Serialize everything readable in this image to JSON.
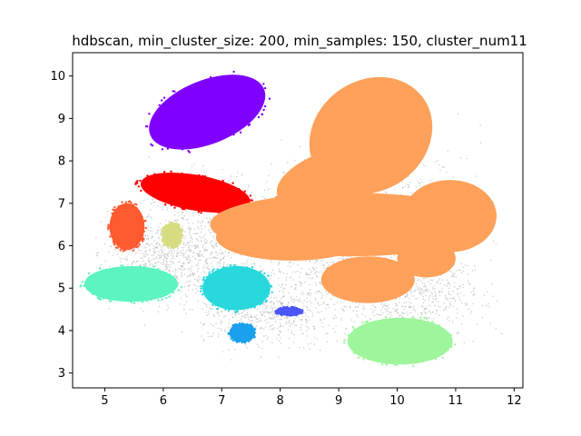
{
  "chart_data": {
    "type": "scatter",
    "title": "hdbscan, min_cluster_size: 200, min_samples: 150, cluster_num11",
    "xlabel": "",
    "ylabel": "",
    "xlim": [
      4.45,
      12.15
    ],
    "ylim": [
      2.65,
      10.55
    ],
    "xticks": [
      5,
      6,
      7,
      8,
      9,
      10,
      11,
      12
    ],
    "yticks": [
      3,
      4,
      5,
      6,
      7,
      8,
      9,
      10
    ],
    "grid": false,
    "legend": "none",
    "noise_color": "#9e9e9e",
    "clusters": [
      {
        "color": "#8000ff",
        "cx": 6.75,
        "cy": 9.15,
        "rx": 1.05,
        "ry": 0.75,
        "angle": -22
      },
      {
        "color": "#ff0000",
        "cx": 6.55,
        "cy": 7.25,
        "rx": 0.95,
        "ry": 0.42,
        "angle": 10
      },
      {
        "color": "#ff5a30",
        "cx": 5.38,
        "cy": 6.45,
        "rx": 0.3,
        "ry": 0.55,
        "angle": 0
      },
      {
        "color": "#d6dc80",
        "cx": 6.15,
        "cy": 6.25,
        "rx": 0.17,
        "ry": 0.28,
        "angle": 0
      },
      {
        "color": "#5cf4c0",
        "cx": 5.45,
        "cy": 5.1,
        "rx": 0.8,
        "ry": 0.42,
        "angle": 0
      },
      {
        "color": "#28d8dc",
        "cx": 7.25,
        "cy": 5.0,
        "rx": 0.58,
        "ry": 0.52,
        "angle": 0
      },
      {
        "color": "#1aa0ec",
        "cx": 7.35,
        "cy": 3.95,
        "rx": 0.22,
        "ry": 0.22,
        "angle": 0
      },
      {
        "color": "#4a56fb",
        "cx": 8.15,
        "cy": 4.45,
        "rx": 0.22,
        "ry": 0.1,
        "angle": 0
      },
      {
        "color": "#9ef59c",
        "cx": 10.05,
        "cy": 3.75,
        "rx": 0.9,
        "ry": 0.55,
        "angle": 0
      },
      {
        "color": "#ffa15a",
        "cx": 9.5,
        "cy": 7.0,
        "rx": 2.0,
        "ry": 2.0,
        "angle": 0
      }
    ]
  }
}
